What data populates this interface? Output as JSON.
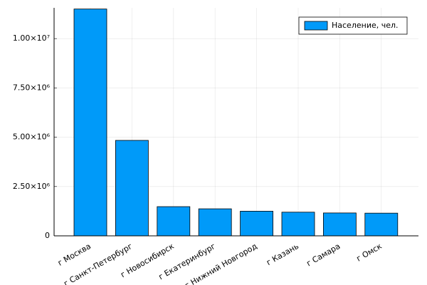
{
  "chart_data": {
    "type": "bar",
    "categories": [
      "г Москва",
      "г Санкт-Петербург",
      "г Новосибирск",
      "г Екатеринбург",
      "г Нижний Новгород",
      "г Казань",
      "г Самара",
      "г Омск"
    ],
    "series": [
      {
        "name": "Население, чел.",
        "color": "#009af9",
        "values": [
          11500000,
          4840000,
          1480000,
          1370000,
          1250000,
          1200000,
          1160000,
          1150000
        ]
      }
    ],
    "ylim": [
      0,
      11560000
    ],
    "yticks": [
      0,
      {
        "value": 2500000,
        "label": "2.50×10⁶"
      },
      {
        "value": 5000000,
        "label": "5.00×10⁶"
      },
      {
        "value": 7500000,
        "label": "7.50×10⁶"
      },
      {
        "value": 10000000,
        "label": "1.00×10⁷"
      }
    ],
    "grid": true,
    "legend": "top-right"
  }
}
